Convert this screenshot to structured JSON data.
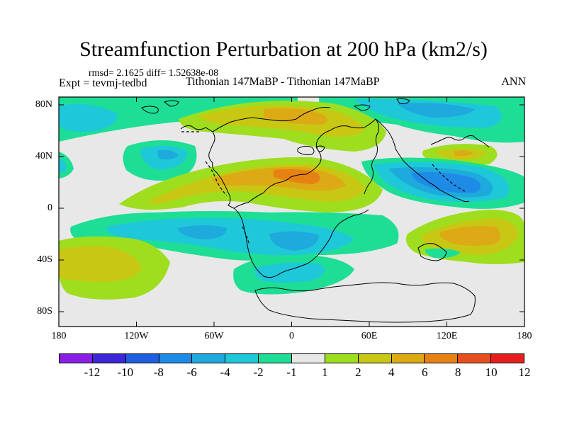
{
  "title": "Streamfunction Perturbation at 200 hPa (km2/s)",
  "stats": "rmsd= 2.1625 diff= 1.52638e-08",
  "expt": "Expt = tevmj-tedbd",
  "period": "Tithonian 147MaBP - Tithonian 147MaBP",
  "season": "ANN",
  "lat_labels": [
    "80N",
    "40N",
    "0",
    "40S",
    "80S"
  ],
  "lon_labels": [
    "180",
    "120W",
    "60W",
    "0",
    "60E",
    "120E",
    "180"
  ],
  "colorbar": {
    "labels": [
      "-12",
      "-10",
      "-8",
      "-6",
      "-4",
      "-2",
      "-1",
      "1",
      "2",
      "4",
      "6",
      "8",
      "10",
      "12"
    ],
    "colors": [
      "#8a1ee6",
      "#3c28d8",
      "#1e5ee0",
      "#1e8ce6",
      "#1eaadc",
      "#1ec8d8",
      "#1ede96",
      "#e8e8e8",
      "#9ede1e",
      "#c8c814",
      "#dcaa14",
      "#e68214",
      "#e6501e",
      "#e61e1e"
    ]
  },
  "map_colors": {
    "neutral": "#e8e8e8",
    "cyan": "#1ec8d8",
    "teal": "#1ede96",
    "light_blue": "#1eaadc",
    "blue": "#1e8ce6",
    "yellow_green": "#9ede1e",
    "olive": "#c8c814",
    "orange": "#dcaa14",
    "dark_orange": "#e68214"
  }
}
